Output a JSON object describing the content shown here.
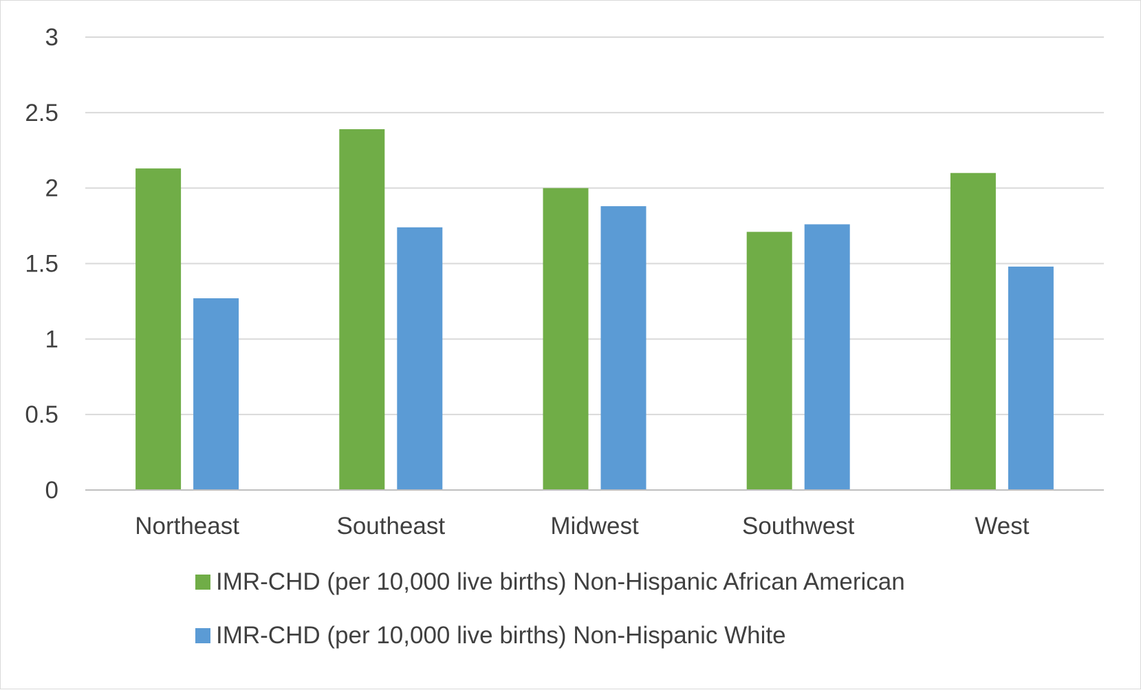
{
  "chart_data": {
    "type": "bar",
    "categories": [
      "Northeast",
      "Southeast",
      "Midwest",
      "Southwest",
      "West"
    ],
    "series": [
      {
        "name": "IMR-CHD (per 10,000 live births) Non-Hispanic African American",
        "color": "#70ad47",
        "values": [
          2.13,
          2.39,
          2.0,
          1.71,
          2.1
        ]
      },
      {
        "name": "IMR-CHD (per 10,000 live births) Non-Hispanic White",
        "color": "#5b9bd5",
        "values": [
          1.27,
          1.74,
          1.88,
          1.76,
          1.48
        ]
      }
    ],
    "y_ticks": [
      "0",
      "0.5",
      "1",
      "1.5",
      "2",
      "2.5",
      "3"
    ],
    "ylim": [
      0,
      3
    ],
    "grid": true,
    "legend_position": "bottom",
    "title": "",
    "xlabel": "",
    "ylabel": ""
  }
}
